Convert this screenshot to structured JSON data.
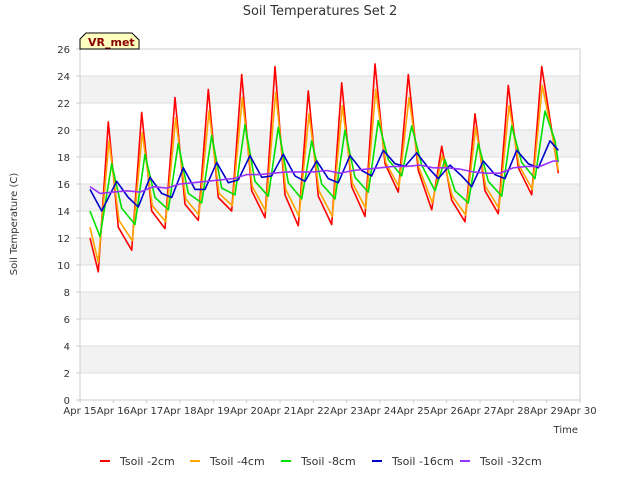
{
  "chart_data": {
    "type": "line",
    "title": "Soil Temperatures Set 2",
    "xlabel": "Time",
    "ylabel": "Soil Temperature (C)",
    "badge": "VR_met",
    "x_unit": "date (April)",
    "xlim": [
      15,
      30
    ],
    "ylim": [
      0,
      26
    ],
    "x_ticks": [
      15,
      16,
      17,
      18,
      19,
      20,
      21,
      22,
      23,
      24,
      25,
      26,
      27,
      28,
      29,
      30
    ],
    "x_tick_labels": [
      "Apr 15",
      "Apr 16",
      "Apr 17",
      "Apr 18",
      "Apr 19",
      "Apr 20",
      "Apr 21",
      "Apr 22",
      "Apr 23",
      "Apr 24",
      "Apr 25",
      "Apr 26",
      "Apr 27",
      "Apr 28",
      "Apr 29",
      "Apr 30"
    ],
    "y_ticks": [
      0,
      2,
      4,
      6,
      8,
      10,
      12,
      14,
      16,
      18,
      20,
      22,
      24,
      26
    ],
    "grid": true,
    "legend_position": "bottom",
    "series": [
      {
        "name": "Tsoil -2cm",
        "color": "#ff0000",
        "x": [
          15.3,
          15.55,
          15.85,
          16.15,
          16.55,
          16.85,
          17.15,
          17.55,
          17.85,
          18.15,
          18.55,
          18.85,
          19.15,
          19.55,
          19.85,
          20.15,
          20.55,
          20.85,
          21.15,
          21.55,
          21.85,
          22.15,
          22.55,
          22.85,
          23.15,
          23.55,
          23.85,
          24.15,
          24.55,
          24.85,
          25.15,
          25.55,
          25.85,
          26.15,
          26.55,
          26.85,
          27.15,
          27.55,
          27.85,
          28.15,
          28.55,
          28.85,
          29.15,
          29.35
        ],
        "y": [
          12.0,
          9.5,
          20.6,
          12.8,
          11.1,
          21.3,
          14.0,
          12.7,
          22.4,
          14.5,
          13.3,
          23.0,
          15.0,
          14.0,
          24.1,
          15.5,
          13.5,
          24.7,
          15.2,
          12.9,
          22.9,
          15.1,
          13.0,
          23.5,
          15.8,
          13.6,
          24.9,
          17.5,
          15.4,
          24.1,
          17.0,
          14.1,
          18.8,
          14.8,
          13.2,
          21.2,
          15.5,
          13.8,
          23.3,
          17.2,
          15.2,
          24.7,
          20.0,
          16.8
        ]
      },
      {
        "name": "Tsoil -4cm",
        "color": "#ffa500",
        "x": [
          15.3,
          15.55,
          15.87,
          16.17,
          16.57,
          16.87,
          17.17,
          17.57,
          17.87,
          18.17,
          18.57,
          18.87,
          19.17,
          19.57,
          19.87,
          20.17,
          20.57,
          20.87,
          21.17,
          21.57,
          21.87,
          22.17,
          22.57,
          22.87,
          23.17,
          23.57,
          23.87,
          24.17,
          24.57,
          24.87,
          25.17,
          25.57,
          25.87,
          26.17,
          26.57,
          26.87,
          27.17,
          27.57,
          27.87,
          28.17,
          28.57,
          28.87,
          29.17,
          29.35
        ],
        "y": [
          12.8,
          10.2,
          19.2,
          13.3,
          11.8,
          19.8,
          14.4,
          13.2,
          20.9,
          14.9,
          13.7,
          21.4,
          15.3,
          14.4,
          22.4,
          15.8,
          14.0,
          22.8,
          15.6,
          13.6,
          21.2,
          15.5,
          13.6,
          21.8,
          16.1,
          14.2,
          23.0,
          17.6,
          15.8,
          22.4,
          17.2,
          14.6,
          18.1,
          15.1,
          13.7,
          20.2,
          15.8,
          14.2,
          21.8,
          17.4,
          15.6,
          23.3,
          19.6,
          17.0
        ]
      },
      {
        "name": "Tsoil -8cm",
        "color": "#00e000",
        "x": [
          15.3,
          15.6,
          15.95,
          16.25,
          16.65,
          16.95,
          17.25,
          17.65,
          17.95,
          18.25,
          18.65,
          18.95,
          19.25,
          19.65,
          19.95,
          20.25,
          20.65,
          20.95,
          21.25,
          21.65,
          21.95,
          22.25,
          22.65,
          22.95,
          23.25,
          23.65,
          23.95,
          24.25,
          24.65,
          24.95,
          25.25,
          25.65,
          25.95,
          26.25,
          26.65,
          26.95,
          27.25,
          27.65,
          27.95,
          28.25,
          28.65,
          28.95,
          29.25,
          29.35
        ],
        "y": [
          14.0,
          12.1,
          17.5,
          14.2,
          13.0,
          18.2,
          15.0,
          14.1,
          19.0,
          15.3,
          14.6,
          19.6,
          15.7,
          15.2,
          20.4,
          16.2,
          15.1,
          20.2,
          16.1,
          14.9,
          19.2,
          16.0,
          14.9,
          20.0,
          16.5,
          15.4,
          20.7,
          17.8,
          16.6,
          20.3,
          17.4,
          15.5,
          17.8,
          15.5,
          14.6,
          19.0,
          16.2,
          15.1,
          20.3,
          17.6,
          16.4,
          21.4,
          19.2,
          17.6
        ]
      },
      {
        "name": "Tsoil -16cm",
        "color": "#0000cc",
        "x": [
          15.3,
          15.65,
          16.1,
          16.45,
          16.75,
          17.1,
          17.45,
          17.75,
          18.1,
          18.45,
          18.75,
          19.1,
          19.45,
          19.75,
          20.1,
          20.45,
          20.75,
          21.1,
          21.45,
          21.75,
          22.1,
          22.45,
          22.75,
          23.1,
          23.45,
          23.75,
          24.1,
          24.45,
          24.75,
          25.1,
          25.45,
          25.75,
          26.1,
          26.45,
          26.75,
          27.1,
          27.45,
          27.75,
          28.1,
          28.45,
          28.75,
          29.1,
          29.35
        ],
        "y": [
          15.6,
          14.0,
          16.2,
          15.0,
          14.3,
          16.5,
          15.3,
          15.0,
          17.2,
          15.6,
          15.6,
          17.6,
          16.1,
          16.3,
          18.1,
          16.5,
          16.6,
          18.2,
          16.6,
          16.2,
          17.7,
          16.4,
          16.1,
          18.1,
          17.0,
          16.6,
          18.5,
          17.5,
          17.3,
          18.3,
          17.2,
          16.4,
          17.4,
          16.6,
          15.8,
          17.7,
          16.7,
          16.4,
          18.5,
          17.5,
          17.2,
          19.2,
          18.5
        ]
      },
      {
        "name": "Tsoil -32cm",
        "color": "#9933ff",
        "x": [
          15.3,
          15.6,
          16.0,
          16.4,
          16.8,
          17.2,
          17.6,
          18.0,
          18.4,
          18.8,
          19.2,
          19.6,
          20.0,
          20.4,
          20.8,
          21.2,
          21.6,
          22.0,
          22.4,
          22.8,
          23.2,
          23.6,
          24.0,
          24.4,
          24.8,
          25.2,
          25.6,
          26.0,
          26.4,
          26.8,
          27.2,
          27.6,
          28.0,
          28.4,
          28.8,
          29.2,
          29.35
        ],
        "y": [
          15.8,
          15.3,
          15.4,
          15.5,
          15.4,
          15.8,
          15.7,
          16.0,
          16.1,
          16.2,
          16.3,
          16.4,
          16.7,
          16.7,
          16.8,
          16.9,
          16.9,
          16.9,
          17.0,
          16.8,
          17.0,
          17.1,
          17.2,
          17.3,
          17.3,
          17.4,
          17.2,
          17.2,
          17.1,
          16.9,
          16.8,
          16.8,
          17.2,
          17.3,
          17.3,
          17.7,
          17.7
        ]
      }
    ]
  }
}
